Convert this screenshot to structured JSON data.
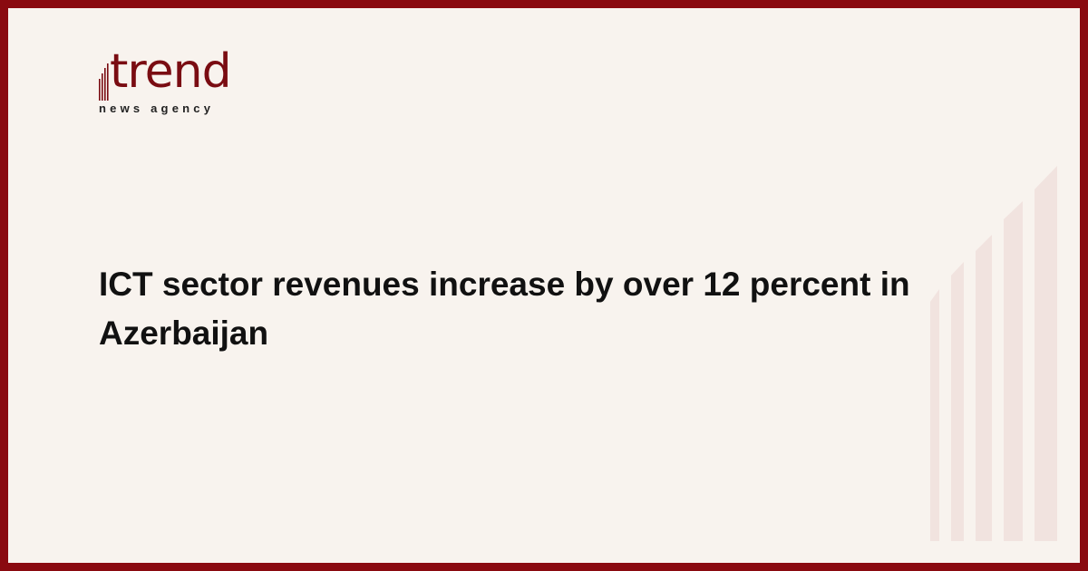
{
  "brand": {
    "name": "trend",
    "tagline": "news agency",
    "color": "#7a0c12",
    "frame_color": "#8a0a10",
    "background": "#f8f3ee"
  },
  "article": {
    "headline": "ICT sector revenues increase by over 12 percent in Azerbaijan"
  },
  "decoration": {
    "icon": "rising-bars-graphic",
    "color": "#f1e3df"
  }
}
